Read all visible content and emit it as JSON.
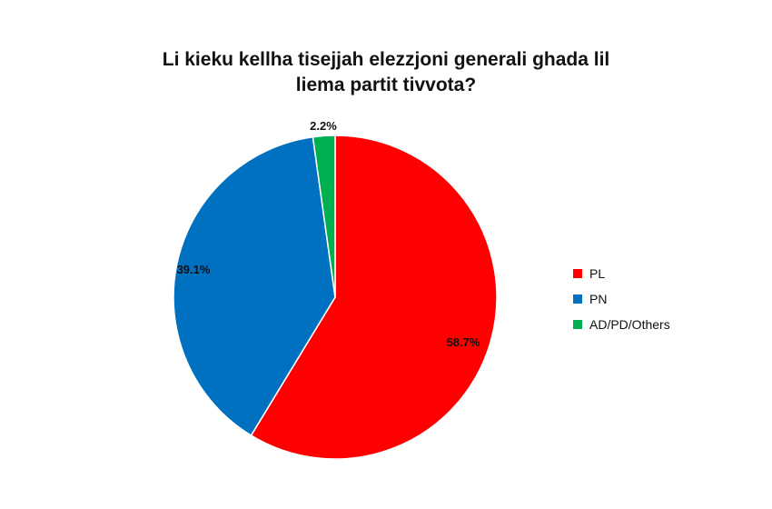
{
  "chart_data": {
    "type": "pie",
    "title": "Li kieku kellha tisejjah elezzjoni generali ghada lil liema partit tivvota?",
    "slices": [
      {
        "name": "PL",
        "value": 58.7,
        "label": "58.7%",
        "color": "#ff0000"
      },
      {
        "name": "PN",
        "value": 39.1,
        "label": "39.1%",
        "color": "#0070c0"
      },
      {
        "name": "AD/PD/Others",
        "value": 2.2,
        "label": "2.2%",
        "color": "#00b050"
      }
    ],
    "legend_position": "right"
  }
}
